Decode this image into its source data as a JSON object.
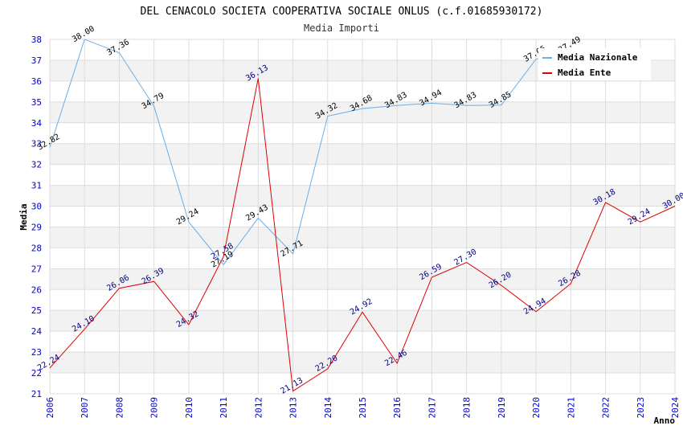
{
  "chart_data": {
    "type": "line",
    "title": "DEL CENACOLO SOCIETA COOPERATIVA SOCIALE ONLUS (c.f.01685930172)",
    "subtitle": "Media Importi",
    "xlabel": "Anno",
    "ylabel": "Media",
    "ylim": [
      21,
      38
    ],
    "yticks": [
      "21",
      "22",
      "23",
      "24",
      "25",
      "26",
      "27",
      "28",
      "29",
      "30",
      "31",
      "32",
      "33",
      "34",
      "35",
      "36",
      "37",
      "38"
    ],
    "categories": [
      "2006",
      "2007",
      "2008",
      "2009",
      "2010",
      "2011",
      "2012",
      "2013",
      "2014",
      "2015",
      "2016",
      "2017",
      "2018",
      "2019",
      "2020",
      "2021",
      "2022",
      "2023",
      "2024"
    ],
    "legend_position": "top-right",
    "grid": "horizontal alternating bands",
    "series": [
      {
        "name": "Media Nazionale",
        "color": "#6aaee8",
        "label_color": "#000000",
        "values": [
          32.82,
          38.0,
          37.36,
          34.79,
          29.24,
          27.19,
          29.43,
          27.71,
          34.32,
          34.68,
          34.83,
          34.94,
          34.83,
          34.85,
          37.05,
          37.49,
          null,
          null,
          null
        ],
        "labels": [
          "32.82",
          "38.00",
          "37.36",
          "34.79",
          "29.24",
          "27.19",
          "29.43",
          "27.71",
          "34.32",
          "34.68",
          "34.83",
          "34.94",
          "34.83",
          "34.85",
          "37.05",
          "37.49",
          "",
          "",
          ""
        ]
      },
      {
        "name": "Media Ente",
        "color": "#dd0000",
        "label_color": "#000080",
        "values": [
          22.24,
          24.1,
          26.06,
          26.39,
          24.32,
          27.58,
          36.13,
          21.13,
          22.2,
          24.92,
          22.46,
          26.59,
          27.3,
          26.2,
          24.94,
          26.28,
          30.18,
          29.24,
          30.0
        ],
        "labels": [
          "22.24",
          "24.10",
          "26.06",
          "26.39",
          "24.32",
          "27.58",
          "36.13",
          "21.13",
          "22.20",
          "24.92",
          "22.46",
          "26.59",
          "27.30",
          "26.20",
          "24.94",
          "26.28",
          "30.18",
          "29.24",
          "30.00"
        ]
      }
    ]
  }
}
